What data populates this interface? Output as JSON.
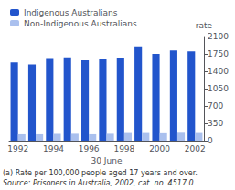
{
  "chart_data": {
    "type": "bar",
    "xlabel": "30 June",
    "ylabel": "rate",
    "categories": [
      "1992",
      null,
      "1994",
      null,
      "1996",
      null,
      "1998",
      null,
      "2000",
      null,
      "2002"
    ],
    "series": [
      {
        "name": "Indigenous Australians",
        "color": "#2255cc",
        "values": [
          1580,
          1540,
          1650,
          1680,
          1620,
          1640,
          1660,
          1900,
          1750,
          1820,
          1800
        ]
      },
      {
        "name": "Non-Indigenous Australians",
        "color": "#aac0ee",
        "values": [
          130,
          130,
          140,
          140,
          130,
          140,
          155,
          155,
          150,
          160,
          155
        ]
      }
    ],
    "ylim": [
      0,
      2100
    ],
    "yticks": [
      0,
      350,
      700,
      1050,
      1400,
      1750,
      2100
    ],
    "grid": false,
    "legend": "upper left",
    "annotations": [
      "(a) Rate per 100,000 people aged 17 years and over.",
      "Source: Prisoners in Australia, 2002, cat. no. 4517.0."
    ]
  }
}
